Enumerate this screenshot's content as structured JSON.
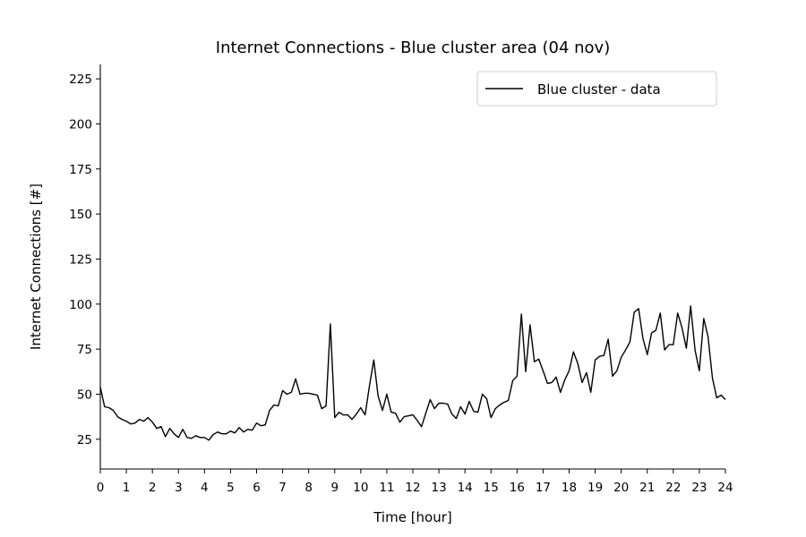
{
  "chart_data": {
    "type": "line",
    "title": "Internet Connections - Blue cluster area (04 nov)",
    "xlabel": "Time [hour]",
    "ylabel": "Internet Connections [#]",
    "xlim": [
      0,
      24
    ],
    "ylim": [
      8.5,
      233
    ],
    "xticks": [
      0,
      1,
      2,
      3,
      4,
      5,
      6,
      7,
      8,
      9,
      10,
      11,
      12,
      13,
      14,
      15,
      16,
      17,
      18,
      19,
      20,
      21,
      22,
      23,
      24
    ],
    "yticks": [
      25,
      50,
      75,
      100,
      125,
      150,
      175,
      200,
      225
    ],
    "grid": false,
    "legend_position": "top-right",
    "line_color": "#000000",
    "series": [
      {
        "name": "Blue cluster - data",
        "x": [
          0,
          0.1667,
          0.3333,
          0.5,
          0.6667,
          0.8333,
          1,
          1.1667,
          1.3333,
          1.5,
          1.6667,
          1.8333,
          2,
          2.1667,
          2.3333,
          2.5,
          2.6667,
          2.8333,
          3,
          3.1667,
          3.3333,
          3.5,
          3.6667,
          3.8333,
          4,
          4.1667,
          4.3333,
          4.5,
          4.6667,
          4.8333,
          5,
          5.1667,
          5.3333,
          5.5,
          5.6667,
          5.8333,
          6,
          6.1667,
          6.3333,
          6.5,
          6.6667,
          6.8333,
          7,
          7.1667,
          7.3333,
          7.5,
          7.6667,
          7.8333,
          8,
          8.1667,
          8.3333,
          8.5,
          8.6667,
          8.8333,
          9,
          9.1667,
          9.3333,
          9.5,
          9.6667,
          9.8333,
          10,
          10.1667,
          10.3333,
          10.5,
          10.6667,
          10.8333,
          11,
          11.1667,
          11.3333,
          11.5,
          11.6667,
          11.8333,
          12,
          12.1667,
          12.3333,
          12.5,
          12.6667,
          12.8333,
          13,
          13.1667,
          13.3333,
          13.5,
          13.6667,
          13.8333,
          14,
          14.1667,
          14.3333,
          14.5,
          14.6667,
          14.8333,
          15,
          15.1667,
          15.3333,
          15.5,
          15.6667,
          15.8333,
          16,
          16.1667,
          16.3333,
          16.5,
          16.6667,
          16.8333,
          17,
          17.1667,
          17.3333,
          17.5,
          17.6667,
          17.8333,
          18,
          18.1667,
          18.3333,
          18.5,
          18.6667,
          18.8333,
          19,
          19.1667,
          19.3333,
          19.5,
          19.6667,
          19.8333,
          20,
          20.1667,
          20.3333,
          20.5,
          20.6667,
          20.8333,
          21,
          21.1667,
          21.3333,
          21.5,
          21.6667,
          21.8333,
          22,
          22.1667,
          22.3333,
          22.5,
          22.6667,
          22.8333,
          23,
          23.1667,
          23.3333,
          23.5,
          23.6667,
          23.8333,
          24
        ],
        "y": [
          54,
          43,
          42.5,
          41,
          37.5,
          36,
          35,
          33.5,
          34,
          36,
          35,
          37,
          34.5,
          31,
          32,
          26.5,
          31,
          28,
          26,
          30.5,
          26,
          25.5,
          27,
          26,
          26,
          24.5,
          27.5,
          29,
          28,
          28,
          29.5,
          28.5,
          31.5,
          29,
          30.5,
          30,
          34,
          32.5,
          33,
          41,
          44,
          43.5,
          52,
          50,
          51,
          58.5,
          50,
          50.5,
          50.5,
          50,
          49.5,
          42,
          43.5,
          89,
          37,
          40,
          38.5,
          38.5,
          36,
          39,
          42.5,
          38.5,
          54.5,
          69,
          49,
          41,
          50,
          40,
          39.5,
          34.5,
          37.5,
          38,
          38.5,
          35.5,
          32,
          39.5,
          47,
          42,
          45,
          45,
          44.5,
          39,
          36.5,
          43,
          39,
          46,
          40.5,
          40,
          50,
          47.5,
          37,
          42,
          44,
          45.5,
          46.5,
          57.5,
          60,
          94.5,
          62.5,
          88.5,
          68,
          69.5,
          63,
          56,
          56.5,
          59.5,
          51,
          58,
          63,
          73.5,
          67,
          56.5,
          62,
          51,
          69,
          71,
          71.5,
          80.5,
          60,
          63,
          70.5,
          74.5,
          79,
          95.5,
          97.5,
          81,
          72,
          84,
          85.5,
          95,
          74.5,
          77.5,
          77.5,
          95,
          87,
          75.5,
          99,
          74.5,
          63,
          92,
          82,
          59,
          48,
          49.5,
          47
        ]
      }
    ]
  }
}
